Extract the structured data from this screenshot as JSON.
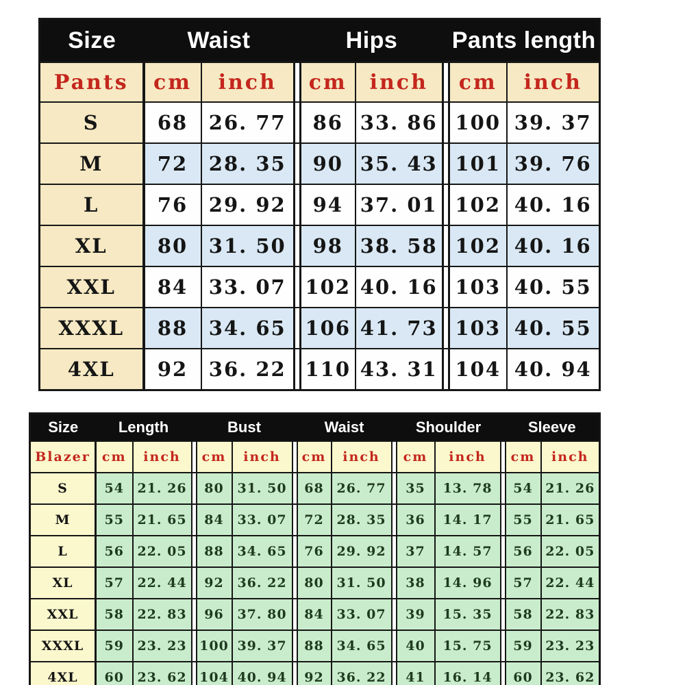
{
  "colors": {
    "header_bg": "#0e0e0e",
    "header_text": "#ffffff",
    "accent_red": "#c4261d",
    "pants_label_cream": "#f6e9c3",
    "pants_row_white": "#fefefe",
    "pants_row_blue": "#d9e8f4",
    "blazer_label_cream": "#fbf8cd",
    "blazer_row_green": "#c9edcc",
    "blazer_value_text": "#1e3a20",
    "pants_value_text": "#151515",
    "border_black": "#161616"
  },
  "chart_data": [
    {
      "type": "table",
      "title": "Pants size chart",
      "header_groups": [
        "Size",
        "Waist",
        "Hips",
        "Pants length"
      ],
      "unit_row_label": "Pants",
      "units": [
        "cm",
        "inch"
      ],
      "row_labels": [
        "S",
        "M",
        "L",
        "XL",
        "XXL",
        "XXXL",
        "4XL"
      ],
      "rows": [
        [
          "68",
          "26. 77",
          "86",
          "33. 86",
          "100",
          "39. 37"
        ],
        [
          "72",
          "28. 35",
          "90",
          "35. 43",
          "101",
          "39. 76"
        ],
        [
          "76",
          "29. 92",
          "94",
          "37. 01",
          "102",
          "40. 16"
        ],
        [
          "80",
          "31. 50",
          "98",
          "38. 58",
          "102",
          "40. 16"
        ],
        [
          "84",
          "33. 07",
          "102",
          "40. 16",
          "103",
          "40. 55"
        ],
        [
          "88",
          "34. 65",
          "106",
          "41. 73",
          "103",
          "40. 55"
        ],
        [
          "92",
          "36. 22",
          "110",
          "43. 31",
          "104",
          "40. 94"
        ]
      ]
    },
    {
      "type": "table",
      "title": "Blazer size chart",
      "header_groups": [
        "Size",
        "Length",
        "Bust",
        "Waist",
        "Shoulder",
        "Sleeve"
      ],
      "unit_row_label": "Blazer",
      "units": [
        "cm",
        "inch"
      ],
      "row_labels": [
        "S",
        "M",
        "L",
        "XL",
        "XXL",
        "XXXL",
        "4XL"
      ],
      "rows": [
        [
          "54",
          "21. 26",
          "80",
          "31. 50",
          "68",
          "26. 77",
          "35",
          "13. 78",
          "54",
          "21. 26"
        ],
        [
          "55",
          "21. 65",
          "84",
          "33. 07",
          "72",
          "28. 35",
          "36",
          "14. 17",
          "55",
          "21. 65"
        ],
        [
          "56",
          "22. 05",
          "88",
          "34. 65",
          "76",
          "29. 92",
          "37",
          "14. 57",
          "56",
          "22. 05"
        ],
        [
          "57",
          "22. 44",
          "92",
          "36. 22",
          "80",
          "31. 50",
          "38",
          "14. 96",
          "57",
          "22. 44"
        ],
        [
          "58",
          "22. 83",
          "96",
          "37. 80",
          "84",
          "33. 07",
          "39",
          "15. 35",
          "58",
          "22. 83"
        ],
        [
          "59",
          "23. 23",
          "100",
          "39. 37",
          "88",
          "34. 65",
          "40",
          "15. 75",
          "59",
          "23. 23"
        ],
        [
          "60",
          "23. 62",
          "104",
          "40. 94",
          "92",
          "36. 22",
          "41",
          "16. 14",
          "60",
          "23. 62"
        ]
      ]
    }
  ]
}
